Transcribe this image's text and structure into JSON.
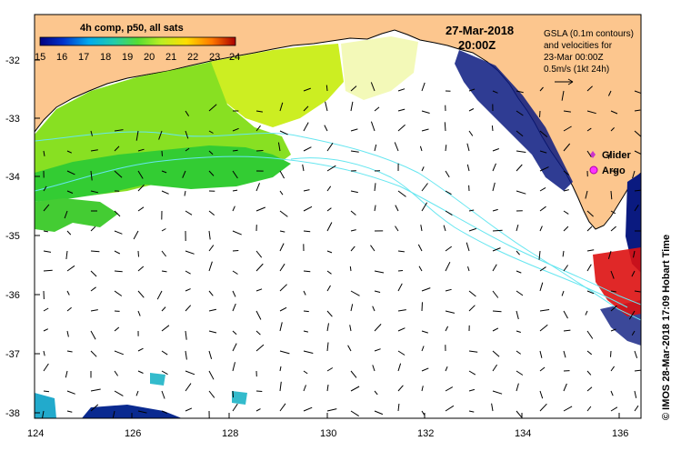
{
  "header": {
    "date": "27-Mar-2018",
    "time": "20:00Z"
  },
  "colorbar": {
    "title": "4h comp, p50, all sats",
    "ticks": [
      "15",
      "16",
      "17",
      "18",
      "19",
      "20",
      "21",
      "22",
      "23",
      "24"
    ]
  },
  "legend": {
    "gsla_lines": [
      "GSLA (0.1m contours)",
      "and velocities for",
      "23-Mar 00:00Z",
      "0.5m/s (1kt 24h)"
    ],
    "glider_label": "Glider",
    "argo_label": "Argo"
  },
  "credit": "© IMOS 28-Mar-2018 17:09 Hobart Time",
  "axes": {
    "x_ticks": [
      "124",
      "126",
      "128",
      "130",
      "132",
      "134",
      "136"
    ],
    "y_ticks": [
      "-32",
      "-33",
      "-34",
      "-35",
      "-36",
      "-37",
      "-38"
    ]
  },
  "colors": {
    "land": "#fcc68e",
    "sst_warm": "#ccee22",
    "sst_mid": "#66dd22",
    "sst_cool": "#22bb44",
    "cold_patch": "#0a1a80",
    "hot_patch": "#dd1111",
    "contour": "#66e6f0",
    "argo": "#ff33ff",
    "glider": "#cc33cc"
  }
}
